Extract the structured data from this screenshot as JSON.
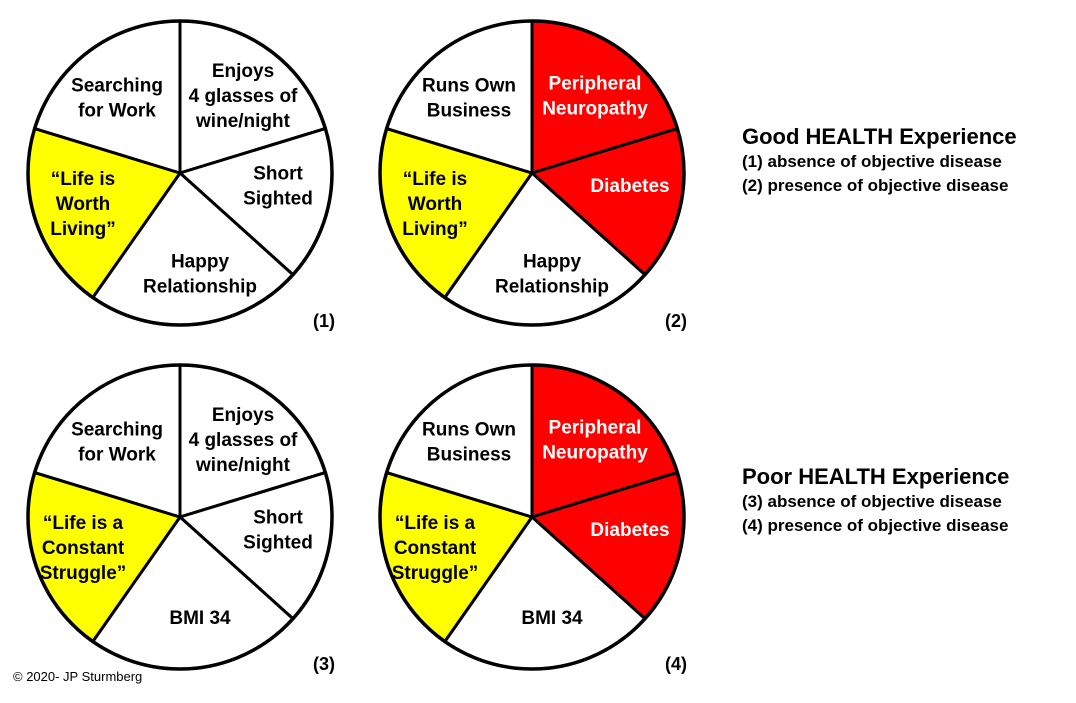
{
  "colors": {
    "yellow": "#ffff00",
    "red": "#ff0000",
    "white": "#ffffff",
    "outline": "#000000"
  },
  "pies": [
    {
      "number": "(1)",
      "segments": [
        {
          "lines": [
            "Enjoys",
            "4 glasses of",
            "wine/night"
          ],
          "fill": "white",
          "text_color": "#000000"
        },
        {
          "lines": [
            "Short",
            "Sighted"
          ],
          "fill": "white",
          "text_color": "#000000"
        },
        {
          "lines": [
            "Happy",
            "Relationship"
          ],
          "fill": "white",
          "text_color": "#000000"
        },
        {
          "lines": [
            "“Life is",
            "Worth",
            "Living”"
          ],
          "fill": "yellow",
          "text_color": "#000000"
        },
        {
          "lines": [
            "Searching",
            "for Work"
          ],
          "fill": "white",
          "text_color": "#000000"
        }
      ]
    },
    {
      "number": "(2)",
      "segments": [
        {
          "lines": [
            "Peripheral",
            "Neuropathy"
          ],
          "fill": "red",
          "text_color": "#ffffff"
        },
        {
          "lines": [
            "Diabetes"
          ],
          "fill": "red",
          "text_color": "#ffffff"
        },
        {
          "lines": [
            "Happy",
            "Relationship"
          ],
          "fill": "white",
          "text_color": "#000000"
        },
        {
          "lines": [
            "“Life is",
            "Worth",
            "Living”"
          ],
          "fill": "yellow",
          "text_color": "#000000"
        },
        {
          "lines": [
            "Runs Own",
            "Business"
          ],
          "fill": "white",
          "text_color": "#000000"
        }
      ]
    },
    {
      "number": "(3)",
      "segments": [
        {
          "lines": [
            "Enjoys",
            "4 glasses of",
            "wine/night"
          ],
          "fill": "white",
          "text_color": "#000000"
        },
        {
          "lines": [
            "Short",
            "Sighted"
          ],
          "fill": "white",
          "text_color": "#000000"
        },
        {
          "lines": [
            "BMI 34"
          ],
          "fill": "white",
          "text_color": "#000000"
        },
        {
          "lines": [
            "“Life is  a",
            "Constant",
            "Struggle”"
          ],
          "fill": "yellow",
          "text_color": "#000000"
        },
        {
          "lines": [
            "Searching",
            "for Work"
          ],
          "fill": "white",
          "text_color": "#000000"
        }
      ]
    },
    {
      "number": "(4)",
      "segments": [
        {
          "lines": [
            "Peripheral",
            "Neuropathy"
          ],
          "fill": "red",
          "text_color": "#ffffff"
        },
        {
          "lines": [
            "Diabetes"
          ],
          "fill": "red",
          "text_color": "#ffffff"
        },
        {
          "lines": [
            "BMI 34"
          ],
          "fill": "white",
          "text_color": "#000000"
        },
        {
          "lines": [
            "“Life is  a",
            "Constant",
            "Struggle”"
          ],
          "fill": "yellow",
          "text_color": "#000000"
        },
        {
          "lines": [
            "Runs Own",
            "Business"
          ],
          "fill": "white",
          "text_color": "#000000"
        }
      ]
    }
  ],
  "legend_good": {
    "heading": "Good HEALTH Experience",
    "item1": "(1) absence of objective disease",
    "item2": "(2) presence of objective disease"
  },
  "legend_poor": {
    "heading": "Poor HEALTH Experience",
    "item1": "(3) absence of objective disease",
    "item2": "(4) presence of objective disease"
  },
  "copyright": "© 2020- JP Sturmberg"
}
